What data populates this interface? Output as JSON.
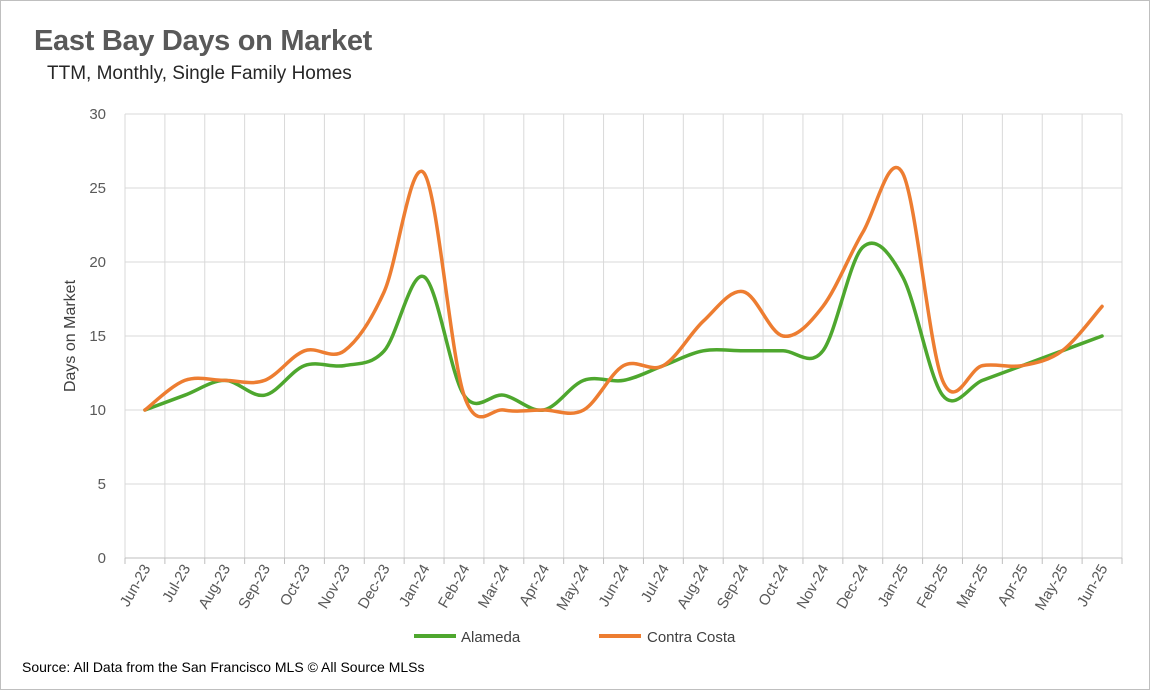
{
  "chart_data": {
    "type": "line",
    "title": "East Bay Days on Market",
    "subtitle": "TTM, Monthly, Single Family Homes",
    "xlabel": "",
    "ylabel": "Days on Market",
    "ylim": [
      0,
      30
    ],
    "yticks": [
      "0",
      "5",
      "10",
      "15",
      "20",
      "25",
      "30"
    ],
    "grid": true,
    "legend": "bottom",
    "categories": [
      "Jun-23",
      "Jul-23",
      "Aug-23",
      "Sep-23",
      "Oct-23",
      "Nov-23",
      "Dec-23",
      "Jan-24",
      "Feb-24",
      "Mar-24",
      "Apr-24",
      "May-24",
      "Jun-24",
      "Jul-24",
      "Aug-24",
      "Sep-24",
      "Oct-24",
      "Nov-24",
      "Dec-24",
      "Jan-25",
      "Feb-25",
      "Mar-25",
      "Apr-25",
      "May-25",
      "Jun-25"
    ],
    "series": [
      {
        "name": "Alameda",
        "color": "#4ea72e",
        "values": [
          10,
          11,
          12,
          11,
          13,
          13,
          14,
          19,
          11,
          11,
          10,
          12,
          12,
          13,
          14,
          14,
          14,
          14,
          21,
          19,
          11,
          12,
          13,
          14,
          15
        ]
      },
      {
        "name": "Contra Costa",
        "color": "#ed7d31",
        "values": [
          10,
          12,
          12,
          12,
          14,
          14,
          18,
          26,
          11,
          10,
          10,
          10,
          13,
          13,
          16,
          18,
          15,
          17,
          22,
          26,
          12,
          13,
          13,
          14,
          17
        ]
      }
    ]
  },
  "source": "Source: All Data from the San Francisco MLS © All Source MLSs"
}
